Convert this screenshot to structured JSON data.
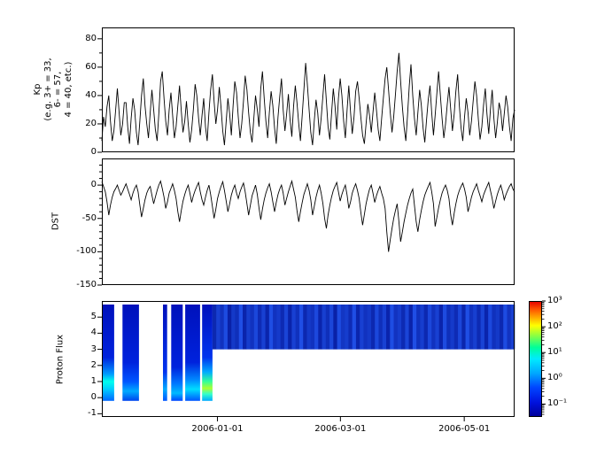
{
  "xaxis": {
    "ticks": [
      {
        "pos": 0.28,
        "label": "2006-01-01"
      },
      {
        "pos": 0.578,
        "label": "2006-03-01"
      },
      {
        "pos": 0.878,
        "label": "2006-05-01"
      }
    ]
  },
  "chart_data": [
    {
      "type": "line",
      "name": "kp",
      "ylabel_lines": [
        "Kp",
        "(e.g. 3+ = 33,",
        "6- = 57,",
        "4 = 40, etc.)"
      ],
      "ylim": [
        0,
        88
      ],
      "yticks": [
        0,
        20,
        40,
        60,
        80
      ],
      "yticks_minor": [
        10,
        30,
        50,
        70
      ],
      "values": [
        8,
        25,
        18,
        32,
        40,
        22,
        8,
        15,
        30,
        45,
        28,
        12,
        20,
        35,
        35,
        18,
        6,
        24,
        38,
        30,
        14,
        5,
        22,
        40,
        52,
        33,
        20,
        10,
        28,
        44,
        30,
        16,
        8,
        27,
        50,
        57,
        38,
        22,
        12,
        30,
        42,
        26,
        10,
        18,
        33,
        47,
        29,
        14,
        22,
        36,
        20,
        7,
        16,
        30,
        48,
        40,
        24,
        12,
        26,
        38,
        18,
        8,
        28,
        44,
        55,
        36,
        20,
        30,
        46,
        32,
        15,
        5,
        22,
        38,
        27,
        12,
        33,
        50,
        42,
        25,
        10,
        20,
        36,
        54,
        44,
        28,
        14,
        7,
        24,
        40,
        30,
        18,
        45,
        57,
        38,
        22,
        10,
        28,
        43,
        33,
        17,
        6,
        25,
        39,
        52,
        30,
        15,
        27,
        41,
        23,
        11,
        32,
        47,
        35,
        20,
        8,
        26,
        44,
        63,
        48,
        30,
        14,
        5,
        22,
        37,
        28,
        12,
        24,
        40,
        55,
        36,
        18,
        9,
        27,
        45,
        33,
        16,
        38,
        52,
        40,
        22,
        10,
        30,
        47,
        28,
        13,
        25,
        43,
        50,
        38,
        24,
        12,
        6,
        20,
        34,
        26,
        14,
        28,
        42,
        30,
        16,
        8,
        24,
        38,
        52,
        60,
        44,
        28,
        14,
        25,
        41,
        57,
        70,
        50,
        32,
        18,
        8,
        26,
        47,
        62,
        40,
        24,
        12,
        28,
        44,
        33,
        17,
        7,
        23,
        37,
        47,
        28,
        12,
        26,
        42,
        57,
        40,
        24,
        10,
        20,
        34,
        46,
        30,
        15,
        27,
        43,
        55,
        33,
        17,
        8,
        25,
        38,
        28,
        12,
        22,
        36,
        50,
        40,
        23,
        9,
        18,
        33,
        45,
        27,
        13,
        30,
        44,
        24,
        10,
        21,
        35,
        29,
        15,
        27,
        40,
        32,
        18,
        8,
        24,
        30
      ]
    },
    {
      "type": "line",
      "name": "dst",
      "ylabel": "DST",
      "ylim": [
        -150,
        40
      ],
      "yticks": [
        0,
        -50,
        -100,
        -150
      ],
      "yticks_minor": [
        30,
        20,
        10,
        -10,
        -20,
        -30,
        -40,
        -60,
        -70,
        -80,
        -90,
        -110,
        -120,
        -130,
        -140
      ],
      "values": [
        5,
        -2,
        -10,
        -25,
        -45,
        -30,
        -18,
        -10,
        -5,
        0,
        -8,
        -15,
        -10,
        -4,
        2,
        -6,
        -14,
        -22,
        -12,
        -5,
        0,
        -10,
        -30,
        -48,
        -35,
        -22,
        -12,
        -6,
        -2,
        -15,
        -28,
        -18,
        -8,
        0,
        6,
        -5,
        -18,
        -35,
        -25,
        -12,
        -5,
        2,
        -8,
        -20,
        -40,
        -55,
        -38,
        -24,
        -14,
        -6,
        0,
        -12,
        -26,
        -16,
        -8,
        -2,
        4,
        -10,
        -22,
        -30,
        -18,
        -8,
        0,
        -14,
        -32,
        -50,
        -36,
        -20,
        -10,
        -2,
        5,
        -8,
        -24,
        -40,
        -28,
        -15,
        -6,
        0,
        -12,
        -20,
        -10,
        -3,
        3,
        -10,
        -28,
        -45,
        -30,
        -16,
        -8,
        0,
        -14,
        -34,
        -52,
        -36,
        -22,
        -12,
        -4,
        2,
        -10,
        -25,
        -40,
        -26,
        -14,
        -6,
        0,
        -12,
        -30,
        -20,
        -10,
        -2,
        6,
        -6,
        -18,
        -38,
        -55,
        -40,
        -26,
        -14,
        -6,
        2,
        -8,
        -22,
        -45,
        -32,
        -18,
        -8,
        0,
        -12,
        -28,
        -50,
        -65,
        -45,
        -30,
        -18,
        -8,
        -2,
        4,
        -10,
        -24,
        -14,
        -6,
        0,
        -15,
        -35,
        -25,
        -12,
        -4,
        2,
        -8,
        -20,
        -42,
        -60,
        -44,
        -28,
        -16,
        -6,
        0,
        -12,
        -26,
        -16,
        -8,
        -2,
        -12,
        -20,
        -35,
        -70,
        -100,
        -82,
        -65,
        -50,
        -38,
        -28,
        -55,
        -85,
        -70,
        -55,
        -42,
        -30,
        -20,
        -12,
        -6,
        -30,
        -55,
        -70,
        -52,
        -38,
        -25,
        -15,
        -8,
        -2,
        4,
        -10,
        -28,
        -62,
        -48,
        -34,
        -22,
        -12,
        -5,
        0,
        -8,
        -20,
        -45,
        -60,
        -42,
        -28,
        -16,
        -8,
        -2,
        3,
        -6,
        -18,
        -40,
        -30,
        -18,
        -10,
        -4,
        2,
        -8,
        -16,
        -25,
        -15,
        -8,
        -2,
        4,
        -8,
        -20,
        -35,
        -24,
        -14,
        -6,
        0,
        -10,
        -22,
        -14,
        -8,
        -2,
        2,
        -6,
        -10
      ]
    },
    {
      "type": "heatmap",
      "name": "proton_flux",
      "ylabel": "Proton Flux",
      "ylim": [
        -1.2,
        6.0
      ],
      "yticks": [
        -1,
        0,
        1,
        2,
        3,
        4,
        5
      ],
      "stripes": [
        {
          "x0": 0.002,
          "x1": 0.03,
          "ymin": -0.2,
          "ymax": 5.78,
          "stops": [
            [
              0,
              "#0011bb"
            ],
            [
              0.55,
              "#0022dd"
            ],
            [
              0.72,
              "#0099ff"
            ],
            [
              0.8,
              "#00ffee"
            ],
            [
              0.88,
              "#00ccff"
            ],
            [
              1,
              "#0066ff"
            ]
          ]
        },
        {
          "x0": 0.05,
          "x1": 0.09,
          "ymin": -0.2,
          "ymax": 5.78,
          "stops": [
            [
              0,
              "#0011bb"
            ],
            [
              0.6,
              "#0022dd"
            ],
            [
              0.8,
              "#0055ff"
            ],
            [
              0.9,
              "#00aaff"
            ],
            [
              1,
              "#0044ee"
            ]
          ]
        },
        {
          "x0": 0.148,
          "x1": 0.158,
          "ymin": -0.2,
          "ymax": 5.78,
          "stops": [
            [
              0,
              "#0011bb"
            ],
            [
              0.7,
              "#0033ee"
            ],
            [
              0.88,
              "#00aaff"
            ],
            [
              1,
              "#0055ff"
            ]
          ]
        },
        {
          "x0": 0.168,
          "x1": 0.196,
          "ymin": -0.2,
          "ymax": 5.78,
          "stops": [
            [
              0,
              "#0011bb"
            ],
            [
              0.65,
              "#0022dd"
            ],
            [
              0.82,
              "#0077ff"
            ],
            [
              0.92,
              "#00bbff"
            ],
            [
              1,
              "#0044ff"
            ]
          ]
        },
        {
          "x0": 0.202,
          "x1": 0.238,
          "ymin": -0.2,
          "ymax": 5.78,
          "stops": [
            [
              0,
              "#0011bb"
            ],
            [
              0.6,
              "#0022dd"
            ],
            [
              0.78,
              "#0088ff"
            ],
            [
              0.88,
              "#00ddff"
            ],
            [
              1,
              "#0055ff"
            ]
          ]
        },
        {
          "x0": 0.243,
          "x1": 0.268,
          "ymin": -0.2,
          "ymax": 5.78,
          "stops": [
            [
              0,
              "#0011bb"
            ],
            [
              0.55,
              "#0033ee"
            ],
            [
              0.7,
              "#00aaff"
            ],
            [
              0.8,
              "#33ff99"
            ],
            [
              0.87,
              "#aaff33"
            ],
            [
              0.93,
              "#33ffcc"
            ],
            [
              1,
              "#00aaff"
            ]
          ]
        }
      ],
      "band": {
        "x0": 0.268,
        "x1": 1.0,
        "ymin": 3.0,
        "ymax": 5.78,
        "base": "#0022bb",
        "low_color": "#000f8f",
        "high_color": "#2255ee",
        "columns": [
          0.35,
          0.7,
          0.5,
          0.85,
          0.25,
          0.6,
          0.45,
          0.9,
          0.3,
          0.65,
          0.5,
          0.8,
          0.4,
          0.7,
          0.3,
          0.88,
          0.5,
          0.62,
          0.38,
          0.75,
          0.28,
          0.7,
          0.48,
          0.9,
          0.35,
          0.6,
          0.5,
          0.82,
          0.3,
          0.68,
          0.45,
          0.78,
          0.25,
          0.85,
          0.55,
          0.65,
          0.4,
          0.9,
          0.32,
          0.7,
          0.5,
          0.6,
          0.35,
          0.8,
          0.45,
          0.72,
          0.3,
          0.88,
          0.52,
          0.64,
          0.38,
          0.76,
          0.28,
          0.9,
          0.48,
          0.66,
          0.36,
          0.8,
          0.5,
          0.7,
          0.3,
          0.85,
          0.45,
          0.62,
          0.4,
          0.78,
          0.33,
          0.9,
          0.5,
          0.68,
          0.38,
          0.74,
          0.3,
          0.82,
          0.48,
          0.6,
          0.35,
          0.86,
          0.52,
          0.7
        ]
      },
      "colorbar": {
        "min_exp": -1.5,
        "max_exp": 3,
        "stops": [
          [
            0,
            "#e60000"
          ],
          [
            0.07,
            "#ff5500"
          ],
          [
            0.14,
            "#ffaa00"
          ],
          [
            0.21,
            "#ffff00"
          ],
          [
            0.3,
            "#88ff44"
          ],
          [
            0.4,
            "#00ff99"
          ],
          [
            0.5,
            "#00eaff"
          ],
          [
            0.62,
            "#00aaff"
          ],
          [
            0.75,
            "#0044ff"
          ],
          [
            0.88,
            "#0011dd"
          ],
          [
            1,
            "#000099"
          ]
        ],
        "ticks": [
          {
            "exp": 3,
            "label": "10³"
          },
          {
            "exp": 2,
            "label": "10²"
          },
          {
            "exp": 1,
            "label": "10¹"
          },
          {
            "exp": 0,
            "label": "10⁰"
          },
          {
            "exp": -1,
            "label": "10⁻¹"
          }
        ]
      }
    }
  ]
}
